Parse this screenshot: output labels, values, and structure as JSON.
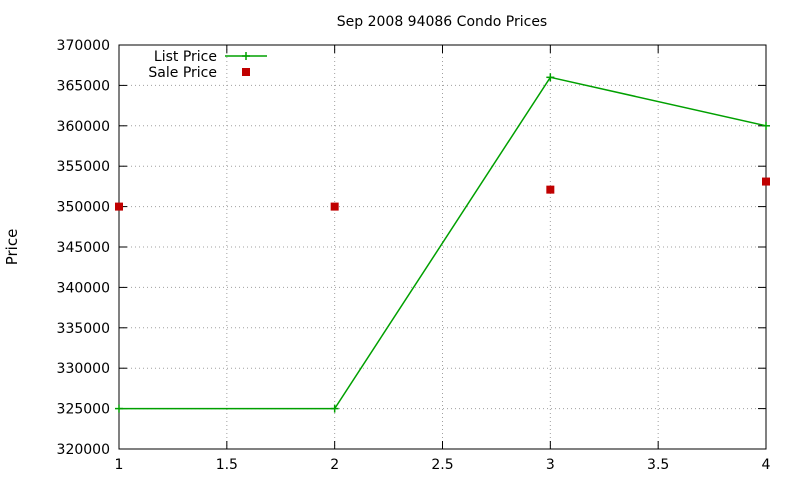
{
  "chart_data": {
    "type": "line",
    "title": "Sep 2008 94086 Condo Prices",
    "xlabel": "",
    "ylabel": "Price",
    "xlim": [
      1,
      4
    ],
    "ylim": [
      320000,
      370000
    ],
    "xticks": [
      "1",
      "1.5",
      "2",
      "2.5",
      "3",
      "3.5",
      "4"
    ],
    "yticks": [
      "320000",
      "325000",
      "330000",
      "335000",
      "340000",
      "345000",
      "350000",
      "355000",
      "360000",
      "365000",
      "370000"
    ],
    "grid": true,
    "legend_position": "top-left",
    "series": [
      {
        "name": "List Price",
        "style": "linespoints",
        "marker": "plus",
        "color": "#00a000",
        "x": [
          1,
          2,
          3,
          4
        ],
        "y": [
          325000,
          325000,
          366000,
          360000
        ]
      },
      {
        "name": "Sale Price",
        "style": "points",
        "marker": "square",
        "color": "#c00000",
        "x": [
          1,
          2,
          3,
          4
        ],
        "y": [
          350000,
          350000,
          352100,
          353100
        ]
      }
    ]
  }
}
